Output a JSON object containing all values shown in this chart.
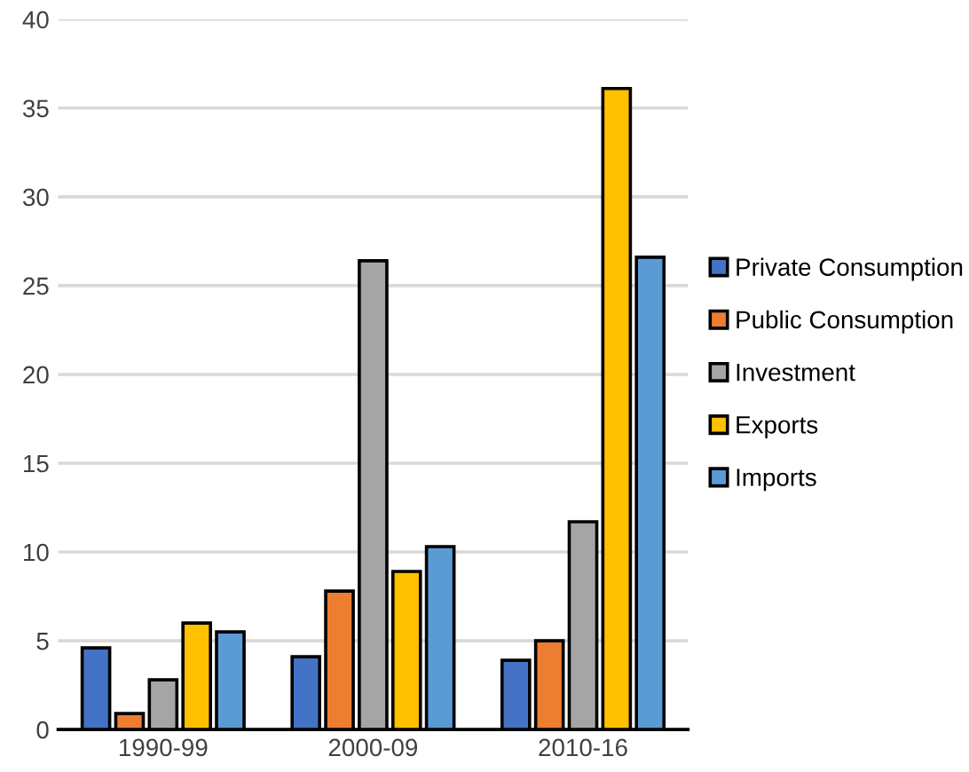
{
  "chart_data": {
    "type": "bar",
    "categories": [
      "1990-99",
      "2000-09",
      "2010-16"
    ],
    "series": [
      {
        "name": "Private Consumption",
        "color": "#4472c4",
        "values": [
          4.6,
          4.1,
          3.9
        ]
      },
      {
        "name": "Public Consumption",
        "color": "#ed7d31",
        "values": [
          0.9,
          7.8,
          5.0
        ]
      },
      {
        "name": "Investment",
        "color": "#a5a5a5",
        "values": [
          2.8,
          26.4,
          11.7
        ]
      },
      {
        "name": "Exports",
        "color": "#ffc000",
        "values": [
          6.0,
          8.9,
          36.1
        ]
      },
      {
        "name": "Imports",
        "color": "#5b9bd5",
        "values": [
          5.5,
          10.3,
          26.6
        ]
      }
    ],
    "ylim": [
      0,
      40
    ],
    "yticks": [
      0,
      5,
      10,
      15,
      20,
      25,
      30,
      35,
      40
    ],
    "grid": "y",
    "legend": "right"
  }
}
